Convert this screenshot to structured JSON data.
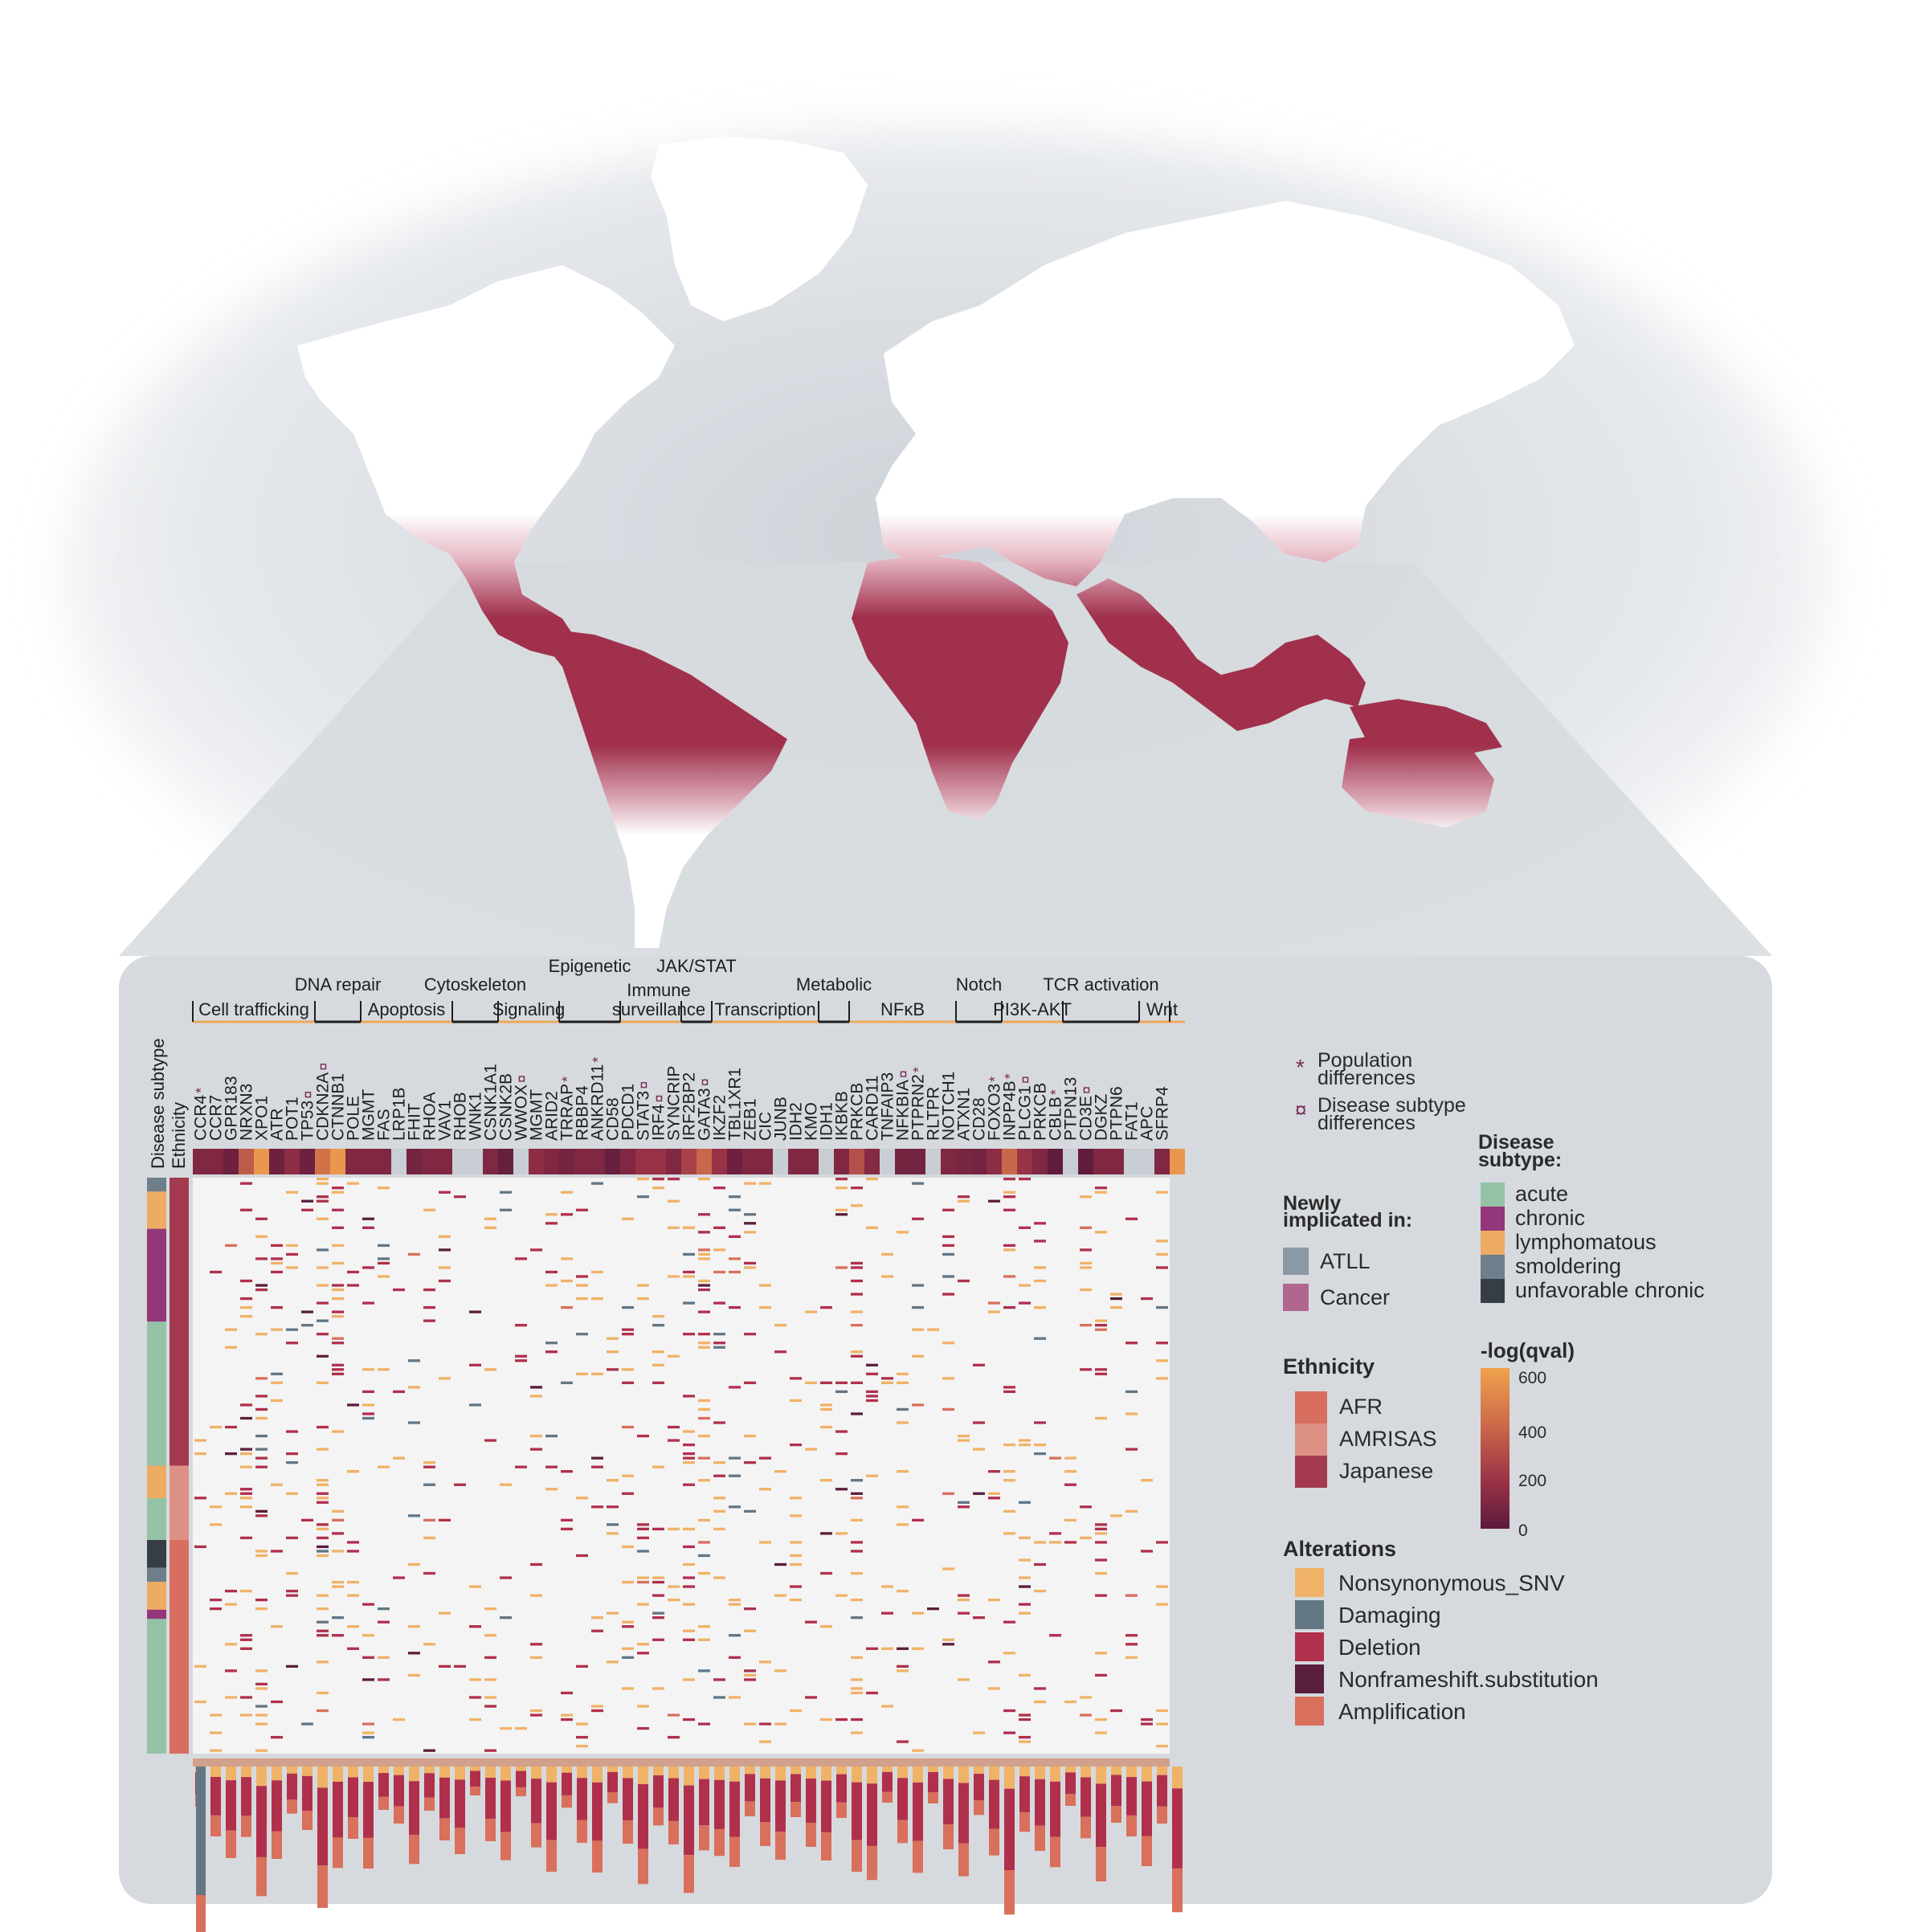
{
  "map": {
    "highlight_color": "#a0304c",
    "land_color": "#ffffff",
    "shadow_color": "#c9cfd6"
  },
  "pathways": [
    {
      "label": "Cell trafficking",
      "row": "lower",
      "start": 0,
      "end": 8
    },
    {
      "label": "DNA repair",
      "row": "upper",
      "start": 8,
      "end": 11
    },
    {
      "label": "Apoptosis",
      "row": "lower",
      "start": 11,
      "end": 17
    },
    {
      "label": "Cytoskeleton",
      "row": "upper",
      "start": 17,
      "end": 20
    },
    {
      "label": "Signaling",
      "row": "lower",
      "start": 20,
      "end": 24
    },
    {
      "label": "Epigenetic",
      "row": "top",
      "start": 24,
      "end": 28
    },
    {
      "label": "Immune surveillance",
      "row": "lower",
      "start": 28,
      "end": 32
    },
    {
      "label": "JAK/STAT",
      "row": "top",
      "start": 32,
      "end": 34
    },
    {
      "label": "Transcription",
      "row": "lower",
      "start": 34,
      "end": 41
    },
    {
      "label": "Metabolic",
      "row": "upper",
      "start": 41,
      "end": 43
    },
    {
      "label": "NFκB",
      "row": "lower",
      "start": 43,
      "end": 50
    },
    {
      "label": "Notch",
      "row": "upper",
      "start": 50,
      "end": 53
    },
    {
      "label": "PI3K-AKT",
      "row": "lower",
      "start": 53,
      "end": 57
    },
    {
      "label": "TCR activation",
      "row": "upper",
      "start": 57,
      "end": 62
    },
    {
      "label": "Wnt",
      "row": "lower",
      "start": 62,
      "end": 65
    }
  ],
  "row_labels": {
    "disease_subtype": "Disease subtype",
    "ethnicity": "Ethnicity"
  },
  "genes": [
    {
      "name": "CCR4",
      "mark": "*",
      "cat": "none"
    },
    {
      "name": "CCR7",
      "mark": "",
      "cat": "none"
    },
    {
      "name": "GPR183",
      "mark": "",
      "cat": "none"
    },
    {
      "name": "NRXN3",
      "mark": "",
      "cat": "none"
    },
    {
      "name": "XPO1",
      "mark": "",
      "cat": "none"
    },
    {
      "name": "ATR",
      "mark": "",
      "cat": "none"
    },
    {
      "name": "POT1",
      "mark": "",
      "cat": "none"
    },
    {
      "name": "TP53",
      "mark": "¤",
      "cat": "none"
    },
    {
      "name": "CDKN2A",
      "mark": "¤",
      "cat": "none"
    },
    {
      "name": "CTNNB1",
      "mark": "",
      "cat": "atll"
    },
    {
      "name": "POLE",
      "mark": "",
      "cat": "atll"
    },
    {
      "name": "MGMT",
      "mark": "",
      "cat": "atll"
    },
    {
      "name": "FAS",
      "mark": "",
      "cat": "none"
    },
    {
      "name": "LRP1B",
      "mark": "",
      "cat": "atll"
    },
    {
      "name": "FHIT",
      "mark": "",
      "cat": "atll"
    },
    {
      "name": "RHOA",
      "mark": "",
      "cat": "none"
    },
    {
      "name": "VAV1",
      "mark": "",
      "cat": "none"
    },
    {
      "name": "RHOB",
      "mark": "",
      "cat": "cancer"
    },
    {
      "name": "WNK1",
      "mark": "",
      "cat": "cancer"
    },
    {
      "name": "CSNK1A1",
      "mark": "",
      "cat": "none"
    },
    {
      "name": "CSNK2B",
      "mark": "",
      "cat": "none"
    },
    {
      "name": "WWOX",
      "mark": "¤",
      "cat": "none"
    },
    {
      "name": "MGMT",
      "mark": "",
      "cat": "none"
    },
    {
      "name": "ARID2",
      "mark": "",
      "cat": "none"
    },
    {
      "name": "TRRAP",
      "mark": "*",
      "cat": "atll"
    },
    {
      "name": "RBBP4",
      "mark": "",
      "cat": "cancer"
    },
    {
      "name": "ANKRD11",
      "mark": "*",
      "cat": "cancer"
    },
    {
      "name": "CD58",
      "mark": "",
      "cat": "none"
    },
    {
      "name": "PDCD1",
      "mark": "",
      "cat": "none"
    },
    {
      "name": "STAT3",
      "mark": "¤",
      "cat": "none"
    },
    {
      "name": "IRF4",
      "mark": "¤",
      "cat": "none"
    },
    {
      "name": "SYNCRIP",
      "mark": "",
      "cat": "none"
    },
    {
      "name": "IRF2BP2",
      "mark": "",
      "cat": "none"
    },
    {
      "name": "GATA3",
      "mark": "¤",
      "cat": "none"
    },
    {
      "name": "IKZF2",
      "mark": "",
      "cat": "none"
    },
    {
      "name": "TBL1XR1",
      "mark": "",
      "cat": "none"
    },
    {
      "name": "ZEB1",
      "mark": "",
      "cat": "none"
    },
    {
      "name": "CIC",
      "mark": "",
      "cat": "none"
    },
    {
      "name": "JUNB",
      "mark": "",
      "cat": "atll"
    },
    {
      "name": "IDH2",
      "mark": "",
      "cat": "none"
    },
    {
      "name": "KMO",
      "mark": "",
      "cat": "none"
    },
    {
      "name": "IDH1",
      "mark": "",
      "cat": "atll"
    },
    {
      "name": "IKBKB",
      "mark": "",
      "cat": "none"
    },
    {
      "name": "PRKCB",
      "mark": "",
      "cat": "none"
    },
    {
      "name": "CARD11",
      "mark": "",
      "cat": "none"
    },
    {
      "name": "TNFAIP3",
      "mark": "",
      "cat": "none"
    },
    {
      "name": "NFKBIA",
      "mark": "¤",
      "cat": "none"
    },
    {
      "name": "PTPRN2",
      "mark": "*",
      "cat": "atll"
    },
    {
      "name": "RLTPR",
      "mark": "",
      "cat": "none"
    },
    {
      "name": "NOTCH1",
      "mark": "",
      "cat": "none"
    },
    {
      "name": "ATXN1",
      "mark": "",
      "cat": "none"
    },
    {
      "name": "CD28",
      "mark": "",
      "cat": "none"
    },
    {
      "name": "FOXO3",
      "mark": "*",
      "cat": "atll"
    },
    {
      "name": "INPP4B",
      "mark": "*",
      "cat": "none"
    },
    {
      "name": "PLCG1",
      "mark": "¤",
      "cat": "none"
    },
    {
      "name": "PRKCB",
      "mark": "",
      "cat": "none"
    },
    {
      "name": "CBLB",
      "mark": "*",
      "cat": "none"
    },
    {
      "name": "PTPN13",
      "mark": "",
      "cat": "atll"
    },
    {
      "name": "CD3E",
      "mark": "¤",
      "cat": "cancer"
    },
    {
      "name": "DGKZ",
      "mark": "",
      "cat": "cancer"
    },
    {
      "name": "PTPN6",
      "mark": "",
      "cat": "cancer"
    },
    {
      "name": "FAT1",
      "mark": "",
      "cat": "none"
    },
    {
      "name": "APC",
      "mark": "",
      "cat": "atll"
    },
    {
      "name": "SFRP4",
      "mark": "",
      "cat": "none"
    }
  ],
  "qval_strip": [
    120,
    120,
    60,
    340,
    560,
    60,
    160,
    60,
    420,
    560,
    120,
    120,
    120,
    0,
    80,
    120,
    120,
    0,
    0,
    120,
    40,
    0,
    160,
    120,
    80,
    120,
    120,
    40,
    120,
    200,
    200,
    120,
    260,
    380,
    200,
    60,
    120,
    120,
    0,
    120,
    120,
    0,
    120,
    300,
    140,
    0,
    80,
    80,
    0,
    120,
    100,
    80,
    160,
    380,
    200,
    120,
    20,
    0,
    20,
    120,
    120,
    0,
    0,
    120,
    560
  ],
  "subtype_blocks": [
    {
      "subtype": "smoldering",
      "rows": 3
    },
    {
      "subtype": "lymphomatous",
      "rows": 8
    },
    {
      "subtype": "chronic",
      "rows": 20
    },
    {
      "subtype": "acute",
      "rows": 31
    },
    {
      "subtype": "lymphomatous",
      "rows": 7
    },
    {
      "subtype": "acute",
      "rows": 9
    },
    {
      "subtype": "unfavorable chronic",
      "rows": 6
    },
    {
      "subtype": "smoldering",
      "rows": 3
    },
    {
      "subtype": "lymphomatous",
      "rows": 6
    },
    {
      "subtype": "chronic",
      "rows": 2
    },
    {
      "subtype": "acute",
      "rows": 29
    }
  ],
  "ethnicity_blocks": [
    {
      "ethnicity": "Japanese",
      "rows": 62
    },
    {
      "ethnicity": "AMRISAS",
      "rows": 16
    },
    {
      "ethnicity": "AFR",
      "rows": 46
    }
  ],
  "legend": {
    "marks": [
      {
        "symbol": "*",
        "text1": "Population",
        "text2": "differences"
      },
      {
        "symbol": "¤",
        "text1": "Disease subtype",
        "text2": "differences"
      }
    ],
    "newly_title_1": "Newly",
    "newly_title_2": "implicated in:",
    "newly": [
      {
        "label": "ATLL",
        "color": "#8c98a6"
      },
      {
        "label": "Cancer",
        "color": "#b0668f"
      }
    ],
    "subtype_title_1": "Disease",
    "subtype_title_2": "subtype:",
    "subtypes": [
      {
        "label": "acute",
        "color": "#93c2a7"
      },
      {
        "label": "chronic",
        "color": "#93377a"
      },
      {
        "label": "lymphomatous",
        "color": "#eeab63"
      },
      {
        "label": "smoldering",
        "color": "#6e7e8a"
      },
      {
        "label": "unfavorable chronic",
        "color": "#363d45"
      }
    ],
    "ethnicity_title": "Ethnicity",
    "ethnicities": [
      {
        "label": "AFR",
        "color": "#d86e60"
      },
      {
        "label": "AMRISAS",
        "color": "#dd9185"
      },
      {
        "label": "Japanese",
        "color": "#a33a4e"
      }
    ],
    "qval_title": "-log(qval)",
    "qval_ticks": [
      "600",
      "400",
      "200",
      "0"
    ],
    "alterations_title": "Alterations",
    "alterations": [
      {
        "label": "Nonsynonymous_SNV",
        "color": "#f0b267"
      },
      {
        "label": "Damaging",
        "color": "#637684"
      },
      {
        "label": "Deletion",
        "color": "#b0304b"
      },
      {
        "label": "Nonframeshift.substitution",
        "color": "#5a1f3c"
      },
      {
        "label": "Amplification",
        "color": "#d8705c"
      }
    ]
  },
  "colors": {
    "gene_default": "#1e1e1e",
    "gene_atll": "#8a97a5",
    "gene_cancer": "#a84d87",
    "mark": "#7a2a55",
    "pathway_orange": "#eea75c",
    "pathway_dark": "#1e1e1e"
  }
}
